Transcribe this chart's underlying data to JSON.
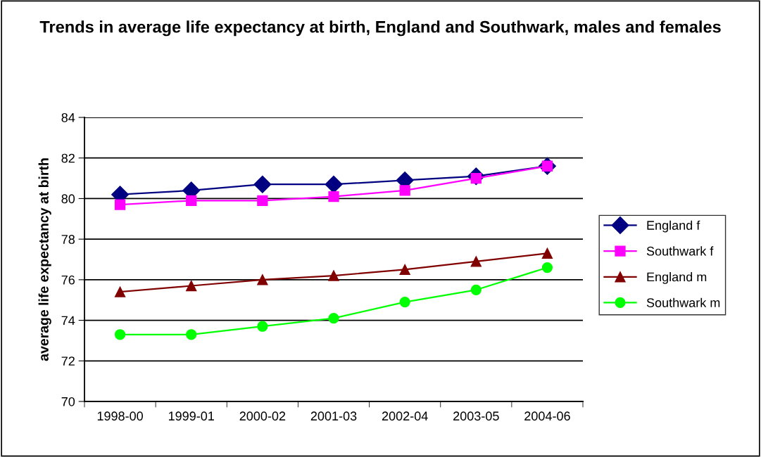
{
  "chart_data": {
    "type": "line",
    "title": "Trends in average life expectancy at birth, England and Southwark, males and females",
    "ylabel": "average life expectancy at birth",
    "categories": [
      "1998-00",
      "1999-01",
      "2000-02",
      "2001-03",
      "2002-04",
      "2003-05",
      "2004-06"
    ],
    "series": [
      {
        "name": "England f",
        "color": "#000080",
        "marker": "diamond",
        "values": [
          80.2,
          80.4,
          80.7,
          80.7,
          80.9,
          81.1,
          81.6
        ]
      },
      {
        "name": "Southwark f",
        "color": "#ff00ff",
        "marker": "square",
        "values": [
          79.7,
          79.9,
          79.9,
          80.1,
          80.4,
          81.0,
          81.6
        ]
      },
      {
        "name": "England m",
        "color": "#800000",
        "marker": "triangle",
        "values": [
          75.4,
          75.7,
          76.0,
          76.2,
          76.5,
          76.9,
          77.3
        ]
      },
      {
        "name": "Southwark m",
        "color": "#00ff00",
        "marker": "circle",
        "values": [
          73.3,
          73.3,
          73.7,
          74.1,
          74.9,
          75.5,
          76.6
        ]
      }
    ],
    "ylim": [
      70,
      84
    ],
    "yticks": [
      70,
      72,
      74,
      76,
      78,
      80,
      82,
      84
    ],
    "grid": "y",
    "legend": "right",
    "line_style": "solid"
  }
}
